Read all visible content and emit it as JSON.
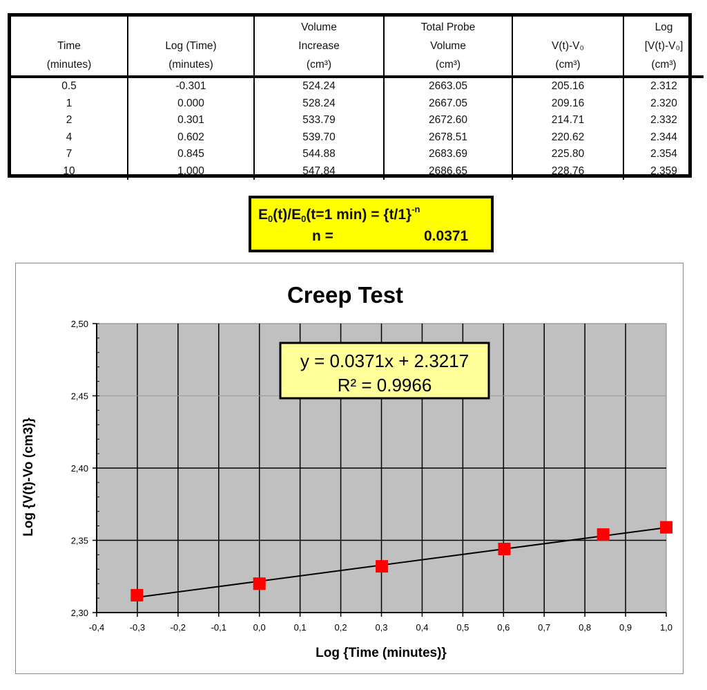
{
  "table": {
    "headers": [
      {
        "lines": [
          "",
          "Time",
          "(minutes)"
        ]
      },
      {
        "lines": [
          "",
          "Log (Time)",
          "(minutes)"
        ]
      },
      {
        "lines": [
          "Volume",
          "Increase",
          "(cm³)"
        ]
      },
      {
        "lines": [
          "Total Probe",
          "Volume",
          "(cm³)"
        ]
      },
      {
        "lines": [
          "",
          "V(t)-V₀",
          "(cm³)"
        ]
      },
      {
        "lines": [
          "Log",
          "[V(t)-V₀]",
          "(cm³)"
        ]
      }
    ],
    "rows": [
      [
        "0.5",
        "-0.301",
        "524.24",
        "2663.05",
        "205.16",
        "2.312"
      ],
      [
        "1",
        "0.000",
        "528.24",
        "2667.05",
        "209.16",
        "2.320"
      ],
      [
        "2",
        "0.301",
        "533.79",
        "2672.60",
        "214.71",
        "2.332"
      ],
      [
        "4",
        "0.602",
        "539.70",
        "2678.51",
        "220.62",
        "2.344"
      ],
      [
        "7",
        "0.845",
        "544.88",
        "2683.69",
        "225.80",
        "2.354"
      ],
      [
        "10",
        "1.000",
        "547.84",
        "2686.65",
        "228.76",
        "2.359"
      ]
    ]
  },
  "equation_box": {
    "E": "E",
    "sub0": "0",
    "t_part": "(t)/E",
    "sub1": "0",
    "rest": "(t=1 min) = {t/1}",
    "exp": "-n",
    "n_label": "n =",
    "n_value": "0.0371",
    "bg_color": "#ffff00"
  },
  "chart_data": {
    "type": "scatter",
    "title": "Creep Test",
    "xlabel": "Log {Time (minutes)}",
    "ylabel": "Log {V(t)-Vo (cm3)}",
    "xlim": [
      -0.4,
      1.0
    ],
    "ylim": [
      2.3,
      2.5
    ],
    "x_ticks": [
      "-0,4",
      "-0,3",
      "-0,2",
      "-0,1",
      "0,0",
      "0,1",
      "0,2",
      "0,3",
      "0,4",
      "0,5",
      "0,6",
      "0,7",
      "0,8",
      "0,9",
      "1,0"
    ],
    "y_ticks": [
      "2,30",
      "2,35",
      "2,40",
      "2,45",
      "2,50"
    ],
    "grid": true,
    "marker_color": "#ff0000",
    "plot_bg": "#c0c0c0",
    "series": [
      {
        "name": "Log [V(t)-V0]",
        "x": [
          -0.301,
          0.0,
          0.301,
          0.602,
          0.845,
          1.0
        ],
        "y": [
          2.312,
          2.32,
          2.332,
          2.344,
          2.354,
          2.359
        ]
      }
    ],
    "trendline": {
      "slope": 0.0371,
      "intercept": 2.3217,
      "r2": 0.9966
    },
    "annotation": {
      "line1": "y = 0.0371x + 2.3217",
      "line2": "R² = 0.9966",
      "bg_color": "#ffff99"
    }
  }
}
